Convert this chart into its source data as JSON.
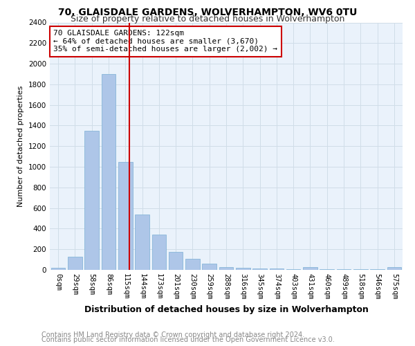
{
  "title1": "70, GLAISDALE GARDENS, WOLVERHAMPTON, WV6 0TU",
  "title2": "Size of property relative to detached houses in Wolverhampton",
  "xlabel": "Distribution of detached houses by size in Wolverhampton",
  "ylabel": "Number of detached properties",
  "categories": [
    "0sqm",
    "29sqm",
    "58sqm",
    "86sqm",
    "115sqm",
    "144sqm",
    "173sqm",
    "201sqm",
    "230sqm",
    "259sqm",
    "288sqm",
    "316sqm",
    "345sqm",
    "374sqm",
    "403sqm",
    "431sqm",
    "460sqm",
    "489sqm",
    "518sqm",
    "546sqm",
    "575sqm"
  ],
  "values": [
    18,
    130,
    1350,
    1900,
    1050,
    540,
    340,
    175,
    110,
    60,
    25,
    22,
    15,
    12,
    5,
    28,
    5,
    5,
    4,
    4,
    28
  ],
  "bar_color": "#aec6e8",
  "bar_edge_color": "#7aafd4",
  "vline_color": "#cc0000",
  "annotation_text": "70 GLAISDALE GARDENS: 122sqm\n← 64% of detached houses are smaller (3,670)\n35% of semi-detached houses are larger (2,002) →",
  "annotation_box_color": "#ffffff",
  "annotation_box_edge": "#cc0000",
  "ylim": [
    0,
    2400
  ],
  "yticks": [
    0,
    200,
    400,
    600,
    800,
    1000,
    1200,
    1400,
    1600,
    1800,
    2000,
    2200,
    2400
  ],
  "grid_color": "#d0dde8",
  "bg_color": "#eaf2fb",
  "footer1": "Contains HM Land Registry data © Crown copyright and database right 2024.",
  "footer2": "Contains public sector information licensed under the Open Government Licence v3.0.",
  "title1_fontsize": 10,
  "title2_fontsize": 9,
  "xlabel_fontsize": 9,
  "ylabel_fontsize": 8,
  "tick_fontsize": 7.5,
  "annotation_fontsize": 8,
  "footer_fontsize": 7
}
